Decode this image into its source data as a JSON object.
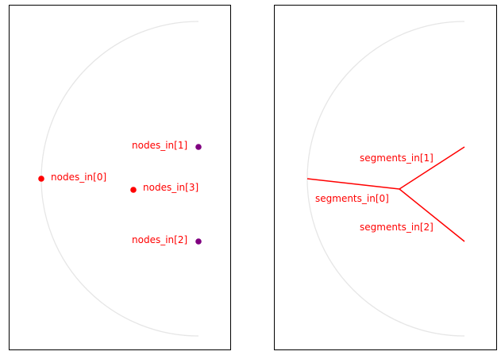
{
  "colors": {
    "node_primary": "#ff0000",
    "node_secondary": "#800080",
    "segment": "#ff0000",
    "label": "#ff0000",
    "arc": "#e6e6e6",
    "frame": "#000000"
  },
  "left_panel": {
    "nodes": [
      {
        "label": "nodes_in[0]",
        "color_role": "node_primary"
      },
      {
        "label": "nodes_in[1]",
        "color_role": "node_secondary"
      },
      {
        "label": "nodes_in[2]",
        "color_role": "node_secondary"
      },
      {
        "label": "nodes_in[3]",
        "color_role": "node_primary"
      }
    ]
  },
  "right_panel": {
    "segments": [
      {
        "label": "segments_in[0]"
      },
      {
        "label": "segments_in[1]"
      },
      {
        "label": "segments_in[2]"
      }
    ]
  }
}
